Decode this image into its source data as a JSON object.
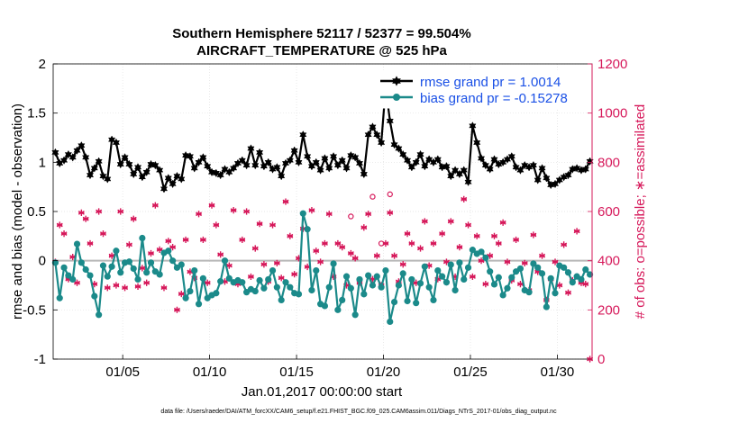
{
  "colors": {
    "rmse": "#000000",
    "bias": "#1b8a8a",
    "obs": "#d6185a",
    "zero_line": "#b8b8b8",
    "legend_text": "#1a50e6",
    "grid": "#e0e0e0"
  },
  "chart_data": {
    "type": "line",
    "title": "Southern Hemisphere 52117 / 52377 = 99.504%",
    "subtitle": "AIRCRAFT_TEMPERATURE @ 525 hPa",
    "xlabel": "Jan.01,2017 00:00:00 start",
    "ylabel": "rmse and bias (model - observation)",
    "y2label": "# of obs: o=possible; ∗=assimilated",
    "footnote": "data file: /Users/raeder/DAI/ATM_forcXX/CAM6_setup/f.e21.FHIST_BGC.f09_025.CAM6assim.011/Diags_NTrS_2017-01/obs_diag_output.nc",
    "xlim": [
      1.0,
      32.0
    ],
    "ylim": [
      -1,
      2
    ],
    "y2lim": [
      0,
      1200
    ],
    "xticks": [
      5,
      10,
      15,
      20,
      25,
      30
    ],
    "xtick_labels": [
      "01/05",
      "01/10",
      "01/15",
      "01/20",
      "01/25",
      "01/30"
    ],
    "yticks": [
      -1,
      -0.5,
      0,
      0.5,
      1,
      1.5,
      2
    ],
    "ytick_labels": [
      "-1",
      "-0.5",
      "0",
      "0.5",
      "1",
      "1.5",
      "2"
    ],
    "y2ticks": [
      0,
      200,
      400,
      600,
      800,
      1000,
      1200
    ],
    "y2tick_labels": [
      "0",
      "200",
      "400",
      "600",
      "800",
      "1000",
      "1200"
    ],
    "grid": true,
    "legend_position": "top-right",
    "x": [
      1.125,
      1.375,
      1.625,
      1.875,
      2.125,
      2.375,
      2.625,
      2.875,
      3.125,
      3.375,
      3.625,
      3.875,
      4.125,
      4.375,
      4.625,
      4.875,
      5.125,
      5.375,
      5.625,
      5.875,
      6.125,
      6.375,
      6.625,
      6.875,
      7.125,
      7.375,
      7.625,
      7.875,
      8.125,
      8.375,
      8.625,
      8.875,
      9.125,
      9.375,
      9.625,
      9.875,
      10.125,
      10.375,
      10.625,
      10.875,
      11.125,
      11.375,
      11.625,
      11.875,
      12.125,
      12.375,
      12.625,
      12.875,
      13.125,
      13.375,
      13.625,
      13.875,
      14.125,
      14.375,
      14.625,
      14.875,
      15.125,
      15.375,
      15.625,
      15.875,
      16.125,
      16.375,
      16.625,
      16.875,
      17.125,
      17.375,
      17.625,
      17.875,
      18.125,
      18.375,
      18.625,
      18.875,
      19.125,
      19.375,
      19.625,
      19.875,
      20.125,
      20.375,
      20.625,
      20.875,
      21.125,
      21.375,
      21.625,
      21.875,
      22.125,
      22.375,
      22.625,
      22.875,
      23.125,
      23.375,
      23.625,
      23.875,
      24.125,
      24.375,
      24.625,
      24.875,
      25.125,
      25.375,
      25.625,
      25.875,
      26.125,
      26.375,
      26.625,
      26.875,
      27.125,
      27.375,
      27.625,
      27.875,
      28.125,
      28.375,
      28.625,
      28.875,
      29.125,
      29.375,
      29.625,
      29.875,
      30.125,
      30.375,
      30.625,
      30.875,
      31.125,
      31.375,
      31.625,
      31.875
    ],
    "series": [
      {
        "name": "rmse grand pr = 1.0014",
        "axis": "left",
        "marker": "hexagram",
        "values": [
          1.1,
          0.99,
          1.02,
          1.08,
          1.05,
          1.12,
          1.17,
          1.05,
          0.87,
          0.94,
          1.01,
          0.86,
          0.83,
          1.23,
          1.2,
          0.98,
          1.05,
          0.98,
          0.88,
          0.95,
          0.85,
          0.9,
          0.98,
          0.97,
          0.92,
          0.73,
          0.84,
          0.78,
          0.86,
          0.83,
          1.07,
          1.06,
          0.94,
          1.0,
          1.05,
          0.96,
          0.9,
          0.89,
          0.87,
          0.93,
          0.9,
          0.94,
          0.99,
          1.02,
          0.97,
          1.14,
          0.97,
          1.1,
          0.96,
          1.0,
          0.93,
          0.95,
          0.86,
          0.99,
          1.02,
          1.12,
          1.0,
          1.28,
          1.06,
          0.96,
          1.0,
          0.92,
          1.04,
          0.94,
          1.06,
          0.97,
          1.02,
          0.94,
          1.07,
          1.05,
          0.99,
          0.88,
          1.28,
          1.36,
          1.28,
          1.2,
          1.76,
          1.42,
          1.18,
          1.14,
          1.08,
          1.02,
          0.95,
          1.0,
          1.08,
          0.96,
          1.03,
          1.0,
          1.03,
          0.95,
          0.96,
          0.86,
          0.92,
          0.88,
          0.92,
          0.8,
          1.37,
          1.2,
          1.04,
          0.97,
          0.93,
          1.03,
          0.98,
          1.0,
          1.03,
          1.06,
          0.95,
          0.92,
          0.97,
          0.95,
          0.97,
          0.82,
          0.94,
          0.84,
          0.77,
          0.78,
          0.82,
          0.85,
          0.87,
          0.93,
          0.94,
          0.92,
          0.93,
          1.01
        ]
      },
      {
        "name": "bias grand pr = -0.15278",
        "axis": "left",
        "marker": "circle",
        "values": [
          -0.02,
          -0.38,
          -0.07,
          -0.15,
          -0.19,
          0.17,
          -0.02,
          -0.09,
          -0.15,
          -0.36,
          -0.55,
          -0.05,
          -0.16,
          -0.06,
          0.1,
          -0.12,
          -0.02,
          -0.01,
          -0.08,
          -0.19,
          0.23,
          -0.12,
          -0.02,
          -0.11,
          -0.14,
          0.08,
          0.1,
          0.0,
          -0.07,
          -0.04,
          -0.38,
          -0.31,
          -0.1,
          -0.44,
          -0.18,
          -0.38,
          -0.35,
          -0.33,
          -0.21,
          0.0,
          -0.18,
          -0.22,
          -0.2,
          -0.22,
          -0.32,
          -0.29,
          -0.31,
          -0.2,
          -0.28,
          -0.19,
          -0.1,
          -0.27,
          -0.4,
          -0.22,
          -0.27,
          -0.33,
          -0.34,
          0.48,
          0.32,
          -0.3,
          -0.1,
          -0.44,
          -0.46,
          -0.27,
          -0.03,
          -0.5,
          -0.4,
          -0.16,
          -0.28,
          -0.55,
          -0.19,
          -0.34,
          -0.15,
          -0.25,
          -0.16,
          -0.27,
          -0.1,
          -0.62,
          -0.42,
          -0.25,
          -0.13,
          -0.41,
          -0.19,
          -0.43,
          -0.23,
          -0.06,
          -0.27,
          -0.4,
          -0.1,
          -0.16,
          -0.22,
          -0.04,
          -0.3,
          -0.02,
          -0.19,
          -0.07,
          0.11,
          0.07,
          0.09,
          0.03,
          -0.11,
          -0.24,
          -0.17,
          -0.35,
          -0.28,
          -0.17,
          -0.11,
          -0.08,
          -0.3,
          -0.32,
          -0.03,
          -0.07,
          -0.13,
          -0.47,
          -0.18,
          -0.33,
          -0.05,
          -0.07,
          -0.12,
          -0.22,
          -0.16,
          -0.19,
          -0.09,
          -0.14
        ]
      },
      {
        "name": "# of obs assimilated",
        "axis": "right",
        "marker": "asterisk",
        "values": [
          395,
          545,
          510,
          325,
          415,
          310,
          595,
          570,
          470,
          305,
          600,
          510,
          290,
          420,
          300,
          600,
          290,
          465,
          570,
          295,
          370,
          310,
          430,
          625,
          445,
          290,
          480,
          455,
          200,
          265,
          485,
          355,
          330,
          590,
          485,
          310,
          625,
          545,
          425,
          315,
          380,
          605,
          305,
          485,
          600,
          335,
          450,
          550,
          385,
          315,
          545,
          390,
          330,
          640,
          500,
          345,
          410,
          530,
          375,
          605,
          440,
          395,
          470,
          590,
          335,
          470,
          455,
          300,
          430,
          410,
          310,
          535,
          590,
          325,
          420,
          300,
          470,
          595,
          420,
          315,
          385,
          510,
          470,
          310,
          450,
          560,
          380,
          470,
          325,
          510,
          395,
          560,
          335,
          455,
          650,
          545,
          335,
          500,
          400,
          305,
          420,
          500,
          470,
          555,
          395,
          320,
          485,
          305,
          390,
          280,
          505,
          355,
          420,
          240,
          325,
          395,
          300,
          465,
          270,
          320,
          520,
          310,
          305,
          0
        ]
      },
      {
        "name": "# of obs possible",
        "axis": "right",
        "marker": "open-circle",
        "x": [
          18.125,
          19.375,
          19.875,
          20.375
        ],
        "values": [
          580,
          660,
          470,
          670
        ]
      }
    ]
  }
}
